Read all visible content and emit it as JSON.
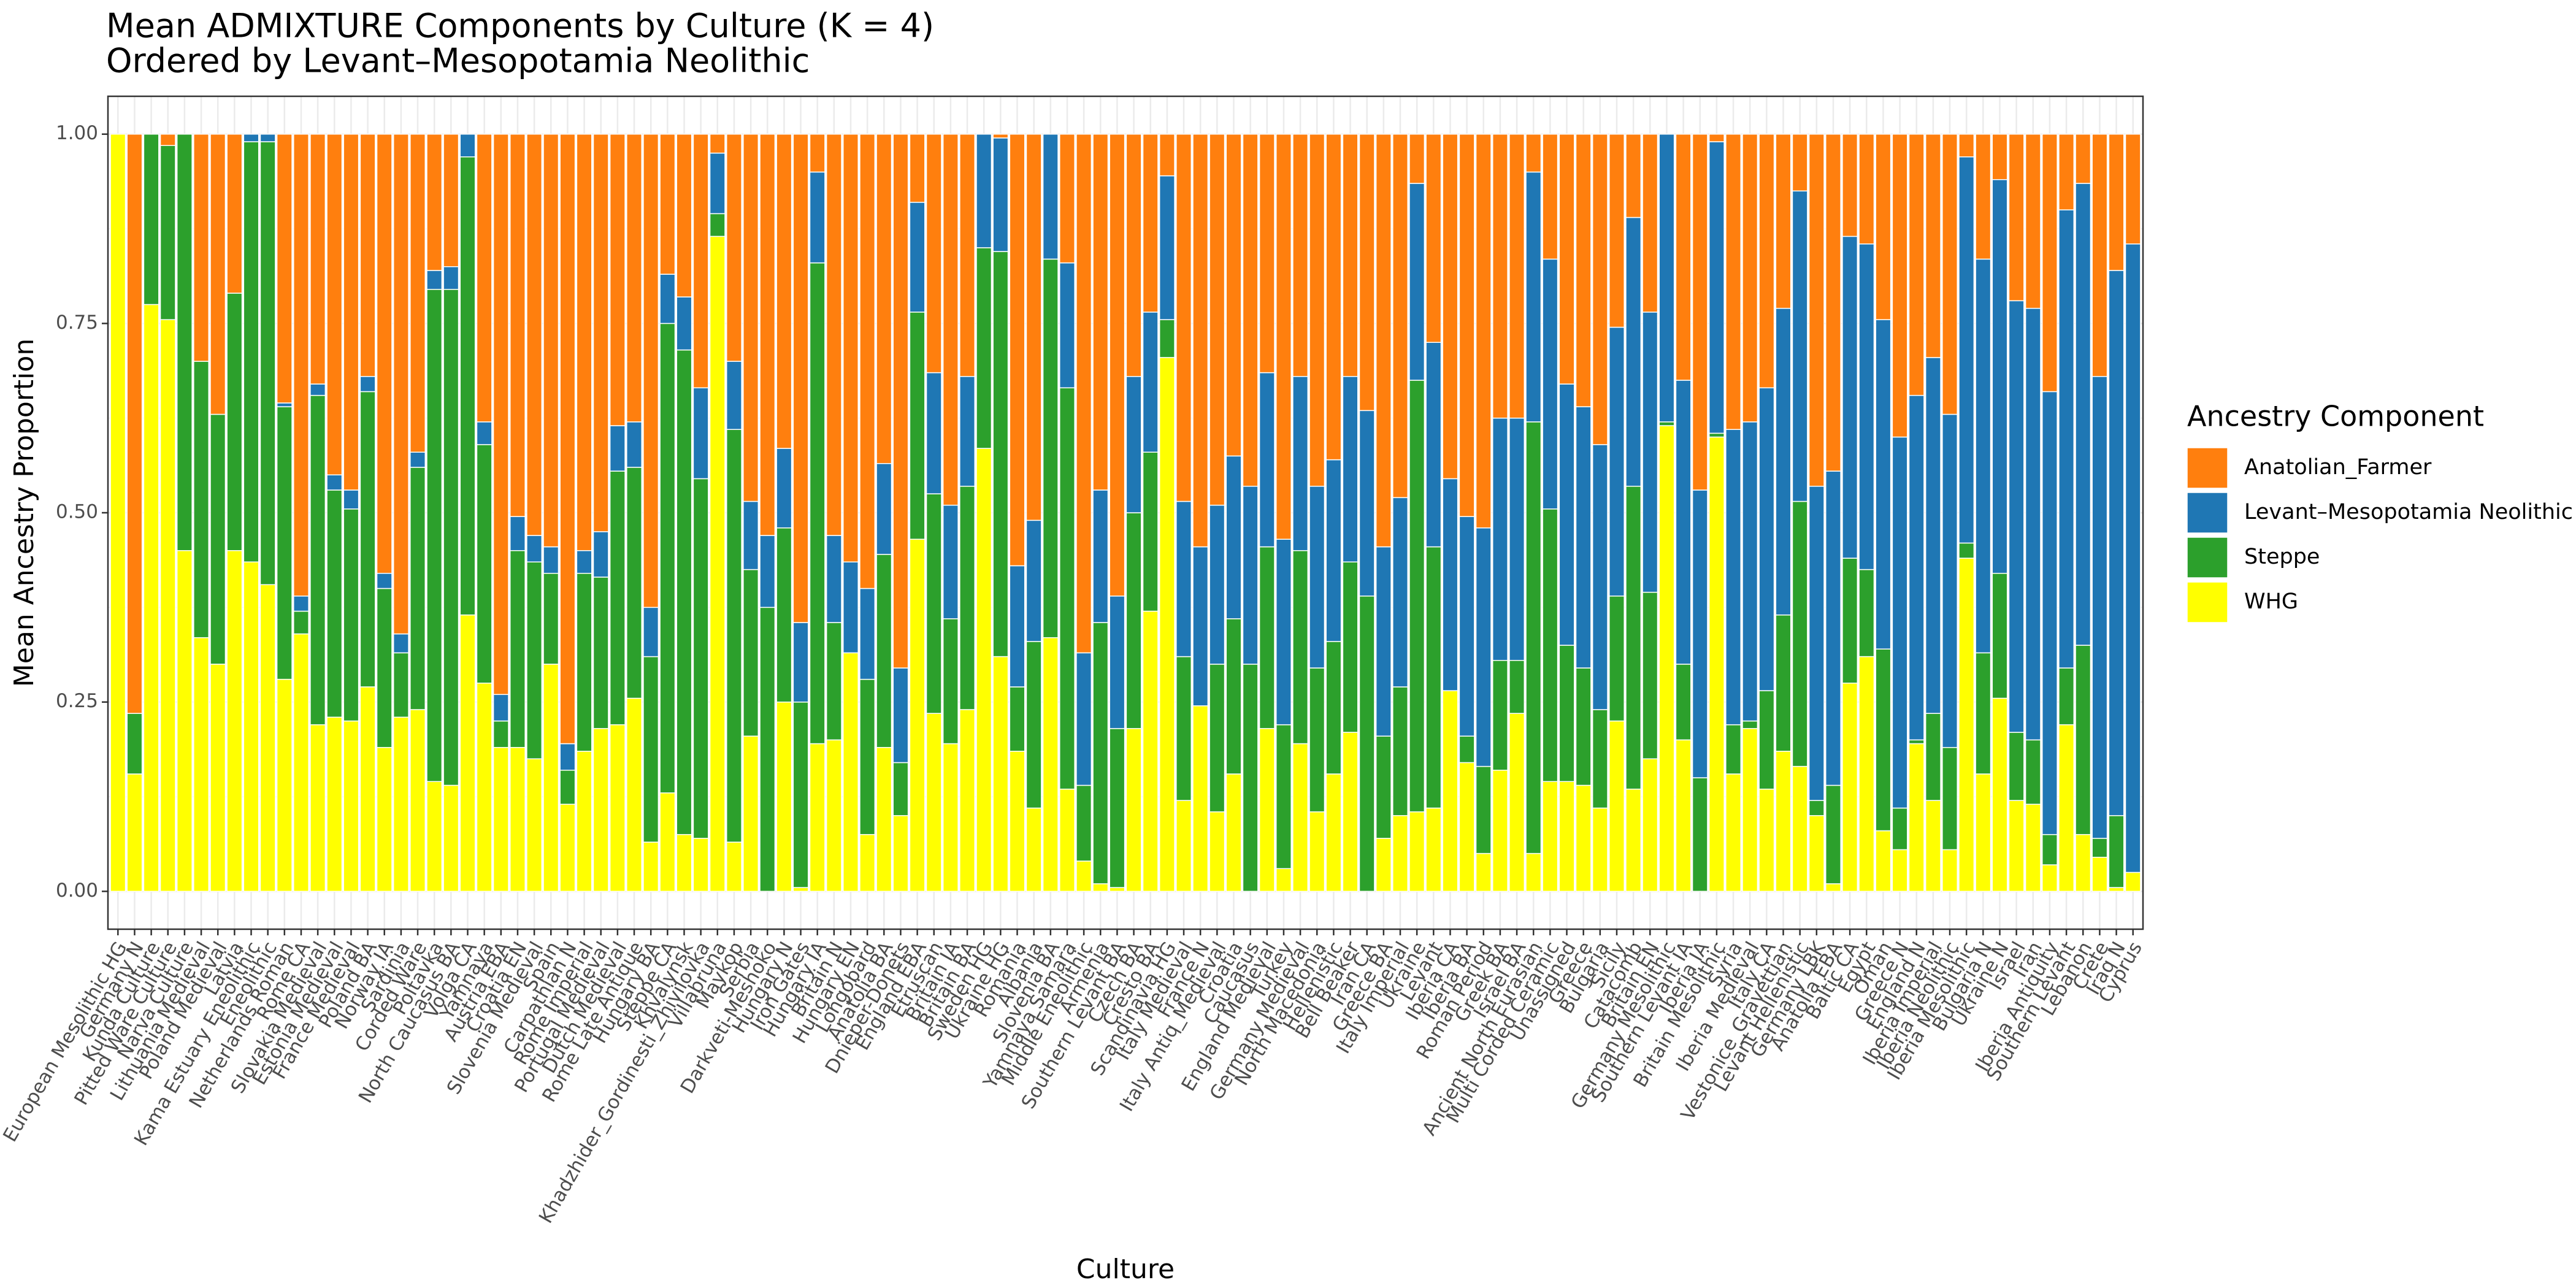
{
  "chart_data": {
    "type": "stacked_bar",
    "title": "Mean ADMIXTURE Components by Culture (K = 4)",
    "subtitle": "Ordered by Levant–Mesopotamia Neolithic",
    "x_label": "Culture",
    "y_label": "Mean Ancestry Proportion",
    "legend_title": "Ancestry Component",
    "legend_position": "right",
    "grid": true,
    "ylim": [
      -0.05,
      1.05
    ],
    "yticks": [
      {
        "value": 0,
        "label": "0.00"
      },
      {
        "value": 0.25,
        "label": "0.25"
      },
      {
        "value": 0.5,
        "label": "0.50"
      },
      {
        "value": 0.75,
        "label": "0.75"
      },
      {
        "value": 1,
        "label": "1.00"
      }
    ],
    "categories": [
      "European Mesolithic HG",
      "Germany N",
      "Kunda Culture",
      "Pitted Ware Culture",
      "Narva Culture",
      "Lithuania Medieval",
      "Poland Medieval",
      "Latvia",
      "Kama Estuary Eneolithic",
      "Eneolithic",
      "Netherlands Roman",
      "Rome CA",
      "Slovakia Medieval",
      "Estonia Medieval",
      "France Medieval",
      "Poland BA",
      "Norway IA",
      "Sardinia",
      "Corded Ware",
      "Poltavka",
      "North Caucasus BA",
      "Volga CA",
      "Yamnaya",
      "Austria EBA",
      "Croatia EN",
      "Slovenia Medieval",
      "Spain",
      "Carpathian N",
      "Rome Imperial",
      "Portugal Medieval",
      "Dutch Medieval",
      "Rome Late Antique",
      "Hungary BA",
      "Steppe CA",
      "Khvalynsk",
      "Khadzhider_Gordinesti_Zhivilovka",
      "Villabruna",
      "Maykop",
      "Serbia",
      "Darkveti-Meshoko",
      "Hungary N",
      "Iron Gates",
      "Hungary IA",
      "Britain N",
      "Hungary EN",
      "Longobard",
      "Anatolia BA",
      "Dnieper-Donets",
      "England EBA",
      "Etruscan",
      "Britain IA",
      "Britain BA",
      "Sweden HG",
      "Ukraine HG",
      "Romania",
      "Albania",
      "Slovenia BA",
      "Yamnaya Samara",
      "Middle Eneolithic",
      "Armenia",
      "Southern Levant BA",
      "Czech BA",
      "Cresto BA",
      "Scandinavia HG",
      "Italy Medieval",
      "France N",
      "Italy Antiq_Medieval",
      "Croatia",
      "Caucasus",
      "England Medieval",
      "Turkey",
      "Germany Medieval",
      "North Macedonia",
      "Hellenistic",
      "Bell Beaker",
      "Iran CA",
      "Greece BA",
      "Italy Imperial",
      "Ukraine",
      "Levant",
      "Iberia CA",
      "Iberia BA",
      "Roman Period",
      "Greek BA",
      "Israel BA",
      "Ancient North Eurasian",
      "Multi Corded Ceramic",
      "Unassigned",
      "Greece",
      "Bulgaria",
      "Sicily",
      "Catacomb",
      "Britain EN",
      "Germany Mesolithic",
      "Southern Levant IA",
      "Iberia IA",
      "Britain Mesolithic",
      "Syria",
      "Iberia Medieval",
      "Italy CA",
      "Vestonice_Gravettian",
      "Levant Hellenistic",
      "Germany LBK",
      "Anatolia EBA",
      "Baltic CA",
      "Egypt",
      "Oman",
      "Greece N",
      "England N",
      "Iberia Imperial",
      "Iberia Neolithic",
      "Iberia Mesolithic",
      "Bulgaria N",
      "Ukraine N",
      "Israel",
      "Iran",
      "Iberia Antiquity",
      "Southern Levant",
      "Lebanon",
      "Crete",
      "Iraq N",
      "Cyprus"
    ],
    "series": [
      {
        "name": "Anatolian_Farmer",
        "color": "#ff7f0e",
        "values": [
          0,
          0.765,
          0,
          0.015,
          0,
          0.3,
          0.37,
          0.21,
          0,
          0,
          0.355,
          0.61,
          0.33,
          0.45,
          0.47,
          0.32,
          0.58,
          0.66,
          0.42,
          0.18,
          0.175,
          0,
          0.38,
          0.74,
          0.505,
          0.53,
          0.545,
          0.805,
          0.55,
          0.525,
          0.385,
          0.38,
          0.625,
          0.185,
          0.215,
          0.335,
          0.025,
          0.3,
          0.485,
          0.53,
          0.415,
          0.645,
          0.05,
          0.53,
          0.565,
          0.6,
          0.435,
          0.705,
          0.09,
          0.315,
          0.49,
          0.32,
          0,
          0.005,
          0.57,
          0.51,
          0,
          0.17,
          0.685,
          0.47,
          0.61,
          0.32,
          0.235,
          0.055,
          0.485,
          0.545,
          0.49,
          0.425,
          0.465,
          0.315,
          0.535,
          0.32,
          0.465,
          0.43,
          0.32,
          0.365,
          0.545,
          0.48,
          0.065,
          0.275,
          0.455,
          0.505,
          0.52,
          0.375,
          0.375,
          0.05,
          0.165,
          0.33,
          0.36,
          0.41,
          0.255,
          0.11,
          0.235,
          0,
          0.325,
          0.47,
          0.01,
          0.39,
          0.38,
          0.335,
          0.23,
          0.075,
          0.465,
          0.445,
          0.135,
          0.145,
          0.245,
          0.4,
          0.345,
          0.295,
          0.37,
          0.03,
          0.165,
          0.06,
          0.22,
          0.23,
          0.34,
          0.1,
          0.065,
          0.32,
          0.18,
          0.145
        ]
      },
      {
        "name": "Levant–Mesopotamia Neolithic",
        "color": "#1f77b4",
        "values": [
          0,
          0,
          0,
          0,
          0,
          0,
          0,
          0,
          0.01,
          0.01,
          0.005,
          0.02,
          0.015,
          0.02,
          0.025,
          0.02,
          0.02,
          0.025,
          0.02,
          0.025,
          0.03,
          0.03,
          0.03,
          0.035,
          0.045,
          0.035,
          0.035,
          0.035,
          0.03,
          0.06,
          0.06,
          0.06,
          0.065,
          0.065,
          0.07,
          0.12,
          0.08,
          0.09,
          0.09,
          0.095,
          0.105,
          0.105,
          0.12,
          0.115,
          0.12,
          0.12,
          0.12,
          0.125,
          0.145,
          0.16,
          0.15,
          0.145,
          0.15,
          0.15,
          0.16,
          0.16,
          0.165,
          0.165,
          0.175,
          0.175,
          0.175,
          0.18,
          0.185,
          0.19,
          0.205,
          0.21,
          0.21,
          0.215,
          0.235,
          0.23,
          0.245,
          0.23,
          0.24,
          0.24,
          0.245,
          0.245,
          0.25,
          0.25,
          0.26,
          0.27,
          0.28,
          0.29,
          0.315,
          0.32,
          0.32,
          0.33,
          0.33,
          0.345,
          0.345,
          0.35,
          0.355,
          0.355,
          0.37,
          0.38,
          0.375,
          0.38,
          0.385,
          0.39,
          0.395,
          0.4,
          0.405,
          0.41,
          0.415,
          0.415,
          0.425,
          0.43,
          0.435,
          0.49,
          0.455,
          0.47,
          0.44,
          0.51,
          0.52,
          0.52,
          0.57,
          0.57,
          0.585,
          0.605,
          0.61,
          0.61,
          0.72,
          0.83
        ]
      },
      {
        "name": "Steppe",
        "color": "#2ca02c",
        "values": [
          0,
          0.08,
          0.225,
          0.23,
          0.55,
          0.365,
          0.33,
          0.34,
          0.555,
          0.585,
          0.36,
          0.03,
          0.435,
          0.3,
          0.28,
          0.39,
          0.21,
          0.085,
          0.32,
          0.65,
          0.655,
          0.605,
          0.315,
          0.035,
          0.26,
          0.26,
          0.12,
          0.045,
          0.235,
          0.2,
          0.335,
          0.305,
          0.245,
          0.62,
          0.64,
          0.475,
          0.03,
          0.545,
          0.22,
          0.375,
          0.23,
          0.245,
          0.635,
          0.155,
          0,
          0.205,
          0.255,
          0.07,
          0.3,
          0.29,
          0.165,
          0.295,
          0.265,
          0.535,
          0.085,
          0.22,
          0.5,
          0.53,
          0.1,
          0.345,
          0.21,
          0.285,
          0.21,
          0.05,
          0.19,
          0,
          0.195,
          0.205,
          0.3,
          0.24,
          0.19,
          0.255,
          0.19,
          0.175,
          0.225,
          0.39,
          0.135,
          0.17,
          0.57,
          0.345,
          0,
          0.035,
          0.115,
          0.145,
          0.07,
          0.57,
          0.36,
          0.18,
          0.155,
          0.13,
          0.165,
          0.4,
          0.22,
          0.005,
          0.1,
          0.15,
          0.005,
          0.065,
          0.01,
          0.13,
          0.18,
          0.35,
          0.02,
          0.13,
          0.165,
          0.115,
          0.24,
          0.055,
          0.005,
          0.115,
          0.135,
          0.02,
          0.16,
          0.165,
          0.09,
          0.085,
          0.04,
          0.075,
          0.25,
          0.025,
          0.095,
          0
        ]
      },
      {
        "name": "WHG",
        "color": "#ffff00",
        "values": [
          1,
          0.155,
          0.775,
          0.755,
          0.45,
          0.335,
          0.3,
          0.45,
          0.435,
          0.405,
          0.28,
          0.34,
          0.22,
          0.23,
          0.225,
          0.27,
          0.19,
          0.23,
          0.24,
          0.145,
          0.14,
          0.365,
          0.275,
          0.19,
          0.19,
          0.175,
          0.3,
          0.115,
          0.185,
          0.215,
          0.22,
          0.255,
          0.065,
          0.13,
          0.075,
          0.07,
          0.865,
          0.065,
          0.205,
          0,
          0.25,
          0.005,
          0.195,
          0.2,
          0.315,
          0.075,
          0.19,
          0.1,
          0.465,
          0.235,
          0.195,
          0.24,
          0.585,
          0.31,
          0.185,
          0.11,
          0.335,
          0.135,
          0.04,
          0.01,
          0.005,
          0.215,
          0.37,
          0.705,
          0.12,
          0.245,
          0.105,
          0.155,
          0,
          0.215,
          0.03,
          0.195,
          0.105,
          0.155,
          0.21,
          0,
          0.07,
          0.1,
          0.105,
          0.11,
          0.265,
          0.17,
          0.05,
          0.16,
          0.235,
          0.05,
          0.145,
          0.145,
          0.14,
          0.11,
          0.225,
          0.135,
          0.175,
          0.615,
          0.2,
          0,
          0.6,
          0.155,
          0.215,
          0.135,
          0.185,
          0.165,
          0.1,
          0.01,
          0.275,
          0.31,
          0.08,
          0.055,
          0.195,
          0.12,
          0.055,
          0.44,
          0.155,
          0.255,
          0.12,
          0.115,
          0.035,
          0.22,
          0.075,
          0.045,
          0.005,
          0.025
        ]
      }
    ]
  }
}
